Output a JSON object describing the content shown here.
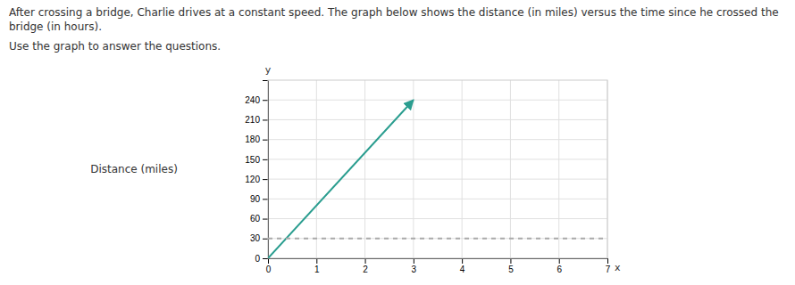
{
  "chart_data": {
    "type": "line",
    "title": "After crossing a bridge, Charlie drives at a constant speed. The graph below shows the distance (in miles) versus the time since he crossed the bridge (in hours).",
    "subtitle": "Use the graph to answer the questions.",
    "xlabel": "x",
    "ylabel": "y",
    "annotations": [
      {
        "text": "Distance (miles)"
      }
    ],
    "series": [
      {
        "x": [
          0,
          3.0
        ],
        "values": [
          0,
          240
        ],
        "color": "#2a9d8f",
        "marker": "arrow"
      },
      {
        "x": [
          0,
          7
        ],
        "values": [
          30,
          30
        ],
        "color": "#aaaaaa",
        "line_style": "dashed"
      }
    ],
    "xlim": [
      0,
      7
    ],
    "ylim": [
      0,
      270
    ],
    "xticks": [
      0,
      1,
      2,
      3,
      4,
      5,
      6,
      7
    ],
    "yticks": [
      0,
      30,
      60,
      90,
      120,
      150,
      180,
      210,
      240
    ],
    "grid": true
  }
}
